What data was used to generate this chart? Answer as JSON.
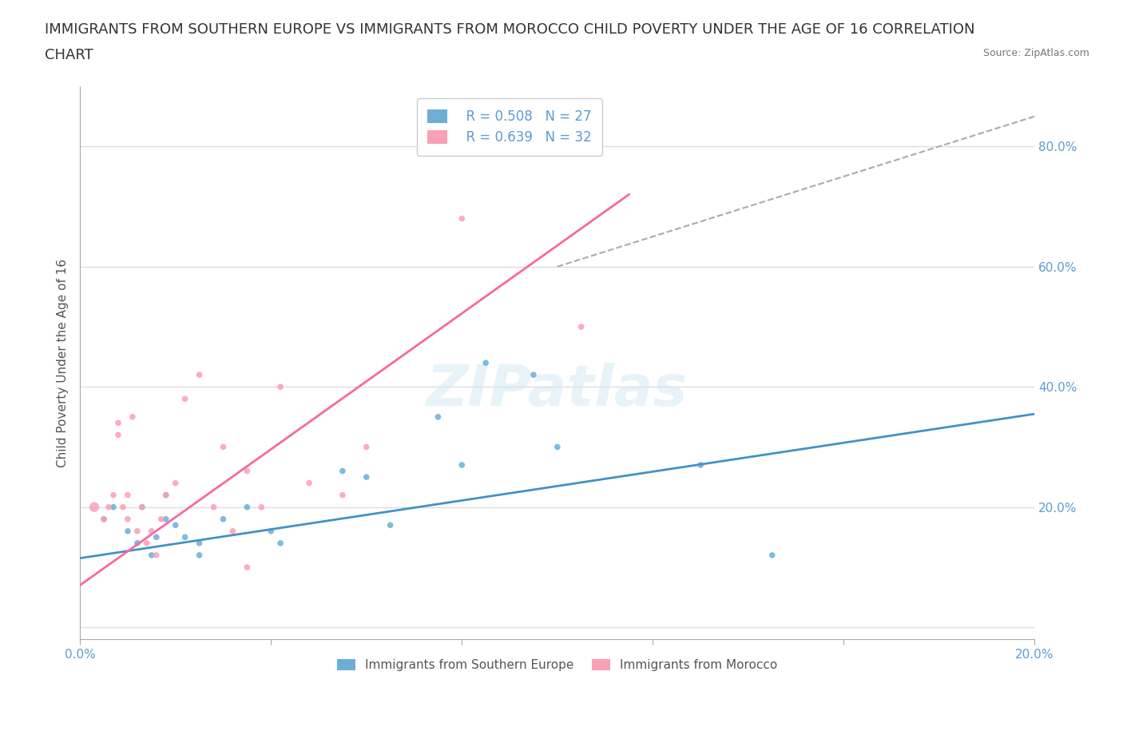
{
  "title_line1": "IMMIGRANTS FROM SOUTHERN EUROPE VS IMMIGRANTS FROM MOROCCO CHILD POVERTY UNDER THE AGE OF 16 CORRELATION",
  "title_line2": "CHART",
  "source_text": "Source: ZipAtlas.com",
  "xlabel": "",
  "ylabel": "Child Poverty Under the Age of 16",
  "xlim": [
    0.0,
    0.2
  ],
  "ylim": [
    -0.02,
    0.9
  ],
  "yticks": [
    0.0,
    0.2,
    0.4,
    0.6,
    0.8
  ],
  "xticks": [
    0.0,
    0.04,
    0.08,
    0.12,
    0.16,
    0.2
  ],
  "xtick_labels": [
    "0.0%",
    "",
    "",
    "",
    "",
    "20.0%"
  ],
  "ytick_labels": [
    "",
    "20.0%",
    "40.0%",
    "60.0%",
    "80.0%"
  ],
  "background_color": "#ffffff",
  "watermark_text": "ZIPatlas",
  "legend_r1": "R = 0.508",
  "legend_n1": "N = 27",
  "legend_r2": "R = 0.639",
  "legend_n2": "N = 32",
  "color_blue": "#6baed6",
  "color_pink": "#fa9fb5",
  "color_blue_line": "#4292c6",
  "color_pink_line": "#f768a1",
  "color_dashed": "#aaaaaa",
  "blue_scatter_x": [
    0.005,
    0.007,
    0.01,
    0.012,
    0.013,
    0.015,
    0.016,
    0.018,
    0.018,
    0.02,
    0.022,
    0.025,
    0.025,
    0.03,
    0.035,
    0.04,
    0.042,
    0.055,
    0.06,
    0.065,
    0.075,
    0.08,
    0.085,
    0.095,
    0.1,
    0.13,
    0.145
  ],
  "blue_scatter_y": [
    0.18,
    0.2,
    0.16,
    0.14,
    0.2,
    0.12,
    0.15,
    0.18,
    0.22,
    0.17,
    0.15,
    0.14,
    0.12,
    0.18,
    0.2,
    0.16,
    0.14,
    0.26,
    0.25,
    0.17,
    0.35,
    0.27,
    0.44,
    0.42,
    0.3,
    0.27,
    0.12
  ],
  "blue_scatter_sizes": [
    30,
    30,
    30,
    30,
    30,
    30,
    30,
    30,
    30,
    30,
    30,
    30,
    30,
    30,
    30,
    30,
    30,
    30,
    30,
    30,
    30,
    30,
    30,
    30,
    30,
    30,
    30
  ],
  "pink_scatter_x": [
    0.003,
    0.005,
    0.006,
    0.007,
    0.008,
    0.008,
    0.009,
    0.01,
    0.01,
    0.011,
    0.012,
    0.013,
    0.014,
    0.015,
    0.016,
    0.017,
    0.018,
    0.02,
    0.022,
    0.025,
    0.028,
    0.03,
    0.032,
    0.035,
    0.035,
    0.038,
    0.042,
    0.048,
    0.055,
    0.06,
    0.08,
    0.105
  ],
  "pink_scatter_y": [
    0.2,
    0.18,
    0.2,
    0.22,
    0.32,
    0.34,
    0.2,
    0.18,
    0.22,
    0.35,
    0.16,
    0.2,
    0.14,
    0.16,
    0.12,
    0.18,
    0.22,
    0.24,
    0.38,
    0.42,
    0.2,
    0.3,
    0.16,
    0.1,
    0.26,
    0.2,
    0.4,
    0.24,
    0.22,
    0.3,
    0.68,
    0.5
  ],
  "pink_scatter_sizes": [
    80,
    30,
    30,
    30,
    30,
    30,
    30,
    30,
    30,
    30,
    30,
    30,
    30,
    30,
    30,
    30,
    30,
    30,
    30,
    30,
    30,
    30,
    30,
    30,
    30,
    30,
    30,
    30,
    30,
    30,
    30,
    30
  ],
  "blue_line_x": [
    0.0,
    0.2
  ],
  "blue_line_y": [
    0.115,
    0.355
  ],
  "pink_line_x": [
    0.0,
    0.115
  ],
  "pink_line_y": [
    0.07,
    0.72
  ],
  "dashed_line_x": [
    0.1,
    0.2
  ],
  "dashed_line_y": [
    0.6,
    0.85
  ],
  "grid_color": "#dddddd",
  "tick_label_color": "#5b9bd5",
  "title_fontsize": 13,
  "axis_label_fontsize": 11,
  "tick_fontsize": 11,
  "legend_fontsize": 12,
  "bottom_legend_labels": [
    "Immigrants from Southern Europe",
    "Immigrants from Morocco"
  ]
}
